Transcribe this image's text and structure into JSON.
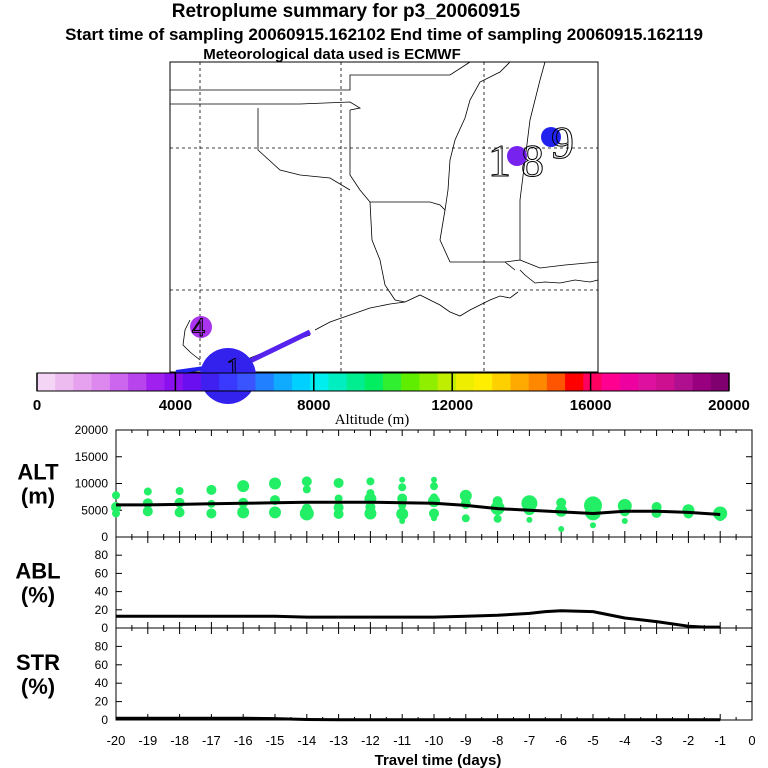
{
  "header": {
    "title": "Retroplume summary for p3_20060915",
    "sampling": "Start time of sampling 20060915.162102     End time of sampling 20060915.162119",
    "met": "Meteorological data used is ECMWF"
  },
  "colors": {
    "plume_green": "#22ee66",
    "line": "#000000",
    "purple": "#7722ee",
    "blue": "#2222ee",
    "violet": "#aa33ee"
  },
  "map": {
    "labels": [
      "1",
      "8",
      "9",
      "4",
      "1"
    ]
  },
  "chart_data": [
    {
      "type": "heatmap",
      "name": "altitude colorbar",
      "title": "Altitude (m)",
      "tick_labels": [
        "0",
        "4000",
        "8000",
        "12000",
        "16000",
        "20000"
      ],
      "range": [
        0,
        20000
      ],
      "colors": [
        "#f5d5f5",
        "#eebbf0",
        "#e6a2ee",
        "#dc88ee",
        "#cc66ee",
        "#b844ee",
        "#a020f0",
        "#8a10f0",
        "#6a10f0",
        "#4020f0",
        "#3a3aff",
        "#3a55ff",
        "#2080ff",
        "#10aaff",
        "#00d0ff",
        "#00eeee",
        "#00eec0",
        "#00ee90",
        "#00ee60",
        "#30ee30",
        "#60ee00",
        "#90ee00",
        "#c0ee00",
        "#eeee00",
        "#ffee00",
        "#ffd000",
        "#ffaa00",
        "#ff8800",
        "#ff5500",
        "#ff0000",
        "#ff0060",
        "#ff0090",
        "#ee00a0",
        "#dd10a0",
        "#cc1090",
        "#b01090",
        "#990080",
        "#800070"
      ]
    },
    {
      "type": "scatter",
      "name": "ALT",
      "ylabel": "ALT\n(m)",
      "ylabel_lines": [
        "ALT",
        "(m)"
      ],
      "ylim": [
        0,
        20000
      ],
      "yticks": [
        "0",
        "5000",
        "10000",
        "15000",
        "20000"
      ],
      "xlim": [
        -20,
        0
      ],
      "series": [
        {
          "name": "mean altitude",
          "x": [
            -20,
            -19,
            -18,
            -17,
            -16,
            -15,
            -14,
            -13,
            -12,
            -11,
            -10,
            -9,
            -8,
            -7,
            -6,
            -5,
            -4,
            -3,
            -2,
            -1
          ],
          "values": [
            6000,
            6000,
            6100,
            6200,
            6300,
            6400,
            6500,
            6500,
            6500,
            6400,
            6300,
            5900,
            5300,
            5000,
            4700,
            4400,
            4800,
            4800,
            4600,
            4200
          ]
        },
        {
          "name": "plume clusters",
          "points": [
            [
              -20,
              7800,
              4
            ],
            [
              -20,
              5600,
              5
            ],
            [
              -20,
              4400,
              4
            ],
            [
              -19,
              8500,
              4
            ],
            [
              -19,
              6300,
              5
            ],
            [
              -19,
              4800,
              5
            ],
            [
              -18,
              8600,
              4
            ],
            [
              -18,
              6400,
              5
            ],
            [
              -18,
              4600,
              5
            ],
            [
              -17,
              8800,
              5
            ],
            [
              -17,
              6200,
              4
            ],
            [
              -17,
              4400,
              5
            ],
            [
              -16,
              9500,
              6
            ],
            [
              -16,
              6400,
              5
            ],
            [
              -16,
              4600,
              6
            ],
            [
              -15,
              10000,
              6
            ],
            [
              -15,
              6900,
              5
            ],
            [
              -15,
              4600,
              6
            ],
            [
              -14,
              10400,
              5
            ],
            [
              -14,
              8900,
              4
            ],
            [
              -14,
              5300,
              5
            ],
            [
              -14,
              4400,
              7
            ],
            [
              -13,
              10100,
              5
            ],
            [
              -13,
              7200,
              4
            ],
            [
              -13,
              5500,
              5
            ],
            [
              -13,
              4300,
              5
            ],
            [
              -12,
              10400,
              4
            ],
            [
              -12,
              8200,
              4
            ],
            [
              -12,
              7100,
              6
            ],
            [
              -12,
              5600,
              5
            ],
            [
              -12,
              4400,
              6
            ],
            [
              -11,
              10700,
              3
            ],
            [
              -11,
              9300,
              4
            ],
            [
              -11,
              7200,
              5
            ],
            [
              -11,
              5900,
              4
            ],
            [
              -11,
              4300,
              6
            ],
            [
              -11,
              3000,
              3
            ],
            [
              -10,
              10700,
              3
            ],
            [
              -10,
              9500,
              4
            ],
            [
              -10,
              7400,
              4
            ],
            [
              -10,
              6700,
              6
            ],
            [
              -10,
              4400,
              5
            ],
            [
              -10,
              3500,
              3
            ],
            [
              -9,
              7700,
              6
            ],
            [
              -9,
              6200,
              5
            ],
            [
              -9,
              3500,
              4
            ],
            [
              -8,
              6700,
              5
            ],
            [
              -8,
              5400,
              7
            ],
            [
              -8,
              3400,
              4
            ],
            [
              -7,
              6300,
              8
            ],
            [
              -7,
              5200,
              6
            ],
            [
              -7,
              3200,
              3
            ],
            [
              -6,
              6400,
              5
            ],
            [
              -6,
              4900,
              6
            ],
            [
              -6,
              1500,
              3
            ],
            [
              -5,
              5900,
              9
            ],
            [
              -5,
              4600,
              8
            ],
            [
              -5,
              2200,
              3
            ],
            [
              -4,
              5800,
              7
            ],
            [
              -4,
              4800,
              5
            ],
            [
              -4,
              3000,
              3
            ],
            [
              -3,
              5600,
              5
            ],
            [
              -3,
              4500,
              5
            ],
            [
              -2,
              5000,
              6
            ],
            [
              -2,
              4400,
              5
            ],
            [
              -1,
              4400,
              7
            ],
            [
              -1,
              3900,
              5
            ]
          ]
        }
      ]
    },
    {
      "type": "line",
      "name": "ABL",
      "ylabel_lines": [
        "ABL",
        "(%)"
      ],
      "ylim": [
        0,
        100
      ],
      "yticks": [
        "0",
        "20",
        "40",
        "60",
        "80"
      ],
      "xlim": [
        -20,
        0
      ],
      "series": [
        {
          "name": "ABL fraction",
          "x": [
            -20,
            -17,
            -15,
            -14,
            -12,
            -10,
            -9,
            -8,
            -7,
            -6.5,
            -6,
            -5,
            -4,
            -3,
            -2,
            -1.5,
            -1
          ],
          "values": [
            13,
            13,
            13,
            12,
            12,
            12,
            13,
            14,
            16,
            18,
            19,
            18,
            11,
            7,
            2,
            1,
            1
          ]
        }
      ]
    },
    {
      "type": "line",
      "name": "STR",
      "ylabel_lines": [
        "STR",
        "(%)"
      ],
      "ylim": [
        0,
        100
      ],
      "yticks": [
        "0",
        "20",
        "40",
        "60",
        "80"
      ],
      "xlim": [
        -20,
        0
      ],
      "xlabel": "Travel time (days)",
      "xticks": [
        "-20",
        "-19",
        "-18",
        "-17",
        "-16",
        "-15",
        "-14",
        "-13",
        "-12",
        "-11",
        "-10",
        "-9",
        "-8",
        "-7",
        "-6",
        "-5",
        "-4",
        "-3",
        "-2",
        "-1",
        "0"
      ],
      "series": [
        {
          "name": "stratospheric fraction",
          "x": [
            -20,
            -17,
            -16,
            -15,
            -14,
            -13,
            -1
          ],
          "values": [
            2,
            2,
            2,
            1.5,
            0.5,
            0.3,
            0.3
          ]
        }
      ]
    }
  ]
}
